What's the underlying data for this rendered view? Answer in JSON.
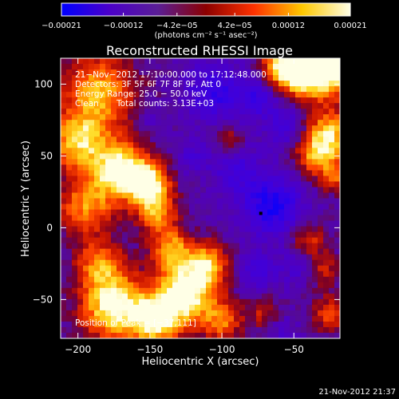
{
  "chart_data": {
    "type": "heatmap",
    "title": "Reconstructed RHESSI Image",
    "xlabel": "Heliocentric X (arcsec)",
    "ylabel": "Heliocentric Y (arcsec)",
    "xlim": [
      -212,
      -18
    ],
    "ylim": [
      -77,
      118
    ],
    "xticks": [
      -200,
      -150,
      -100,
      -50
    ],
    "yticks": [
      -50,
      0,
      50,
      100
    ],
    "xtick_labels": [
      "−200",
      "−150",
      "−100",
      "−50"
    ],
    "ytick_labels": [
      "−50",
      "0",
      "50",
      "100"
    ],
    "colorbar": {
      "min": -0.00021,
      "max": 0.00021,
      "ticks": [
        -0.00021,
        -0.00012,
        -4.2e-05,
        4.2e-05,
        0.00012,
        0.00021
      ],
      "tick_labels": [
        "−0.00021",
        "−0.00012",
        "−4.2e−05",
        "4.2e−05",
        "0.00012",
        "0.00021"
      ],
      "unit_label": "(photons cm⁻² s⁻¹ asec⁻²)",
      "colors": [
        "#0000ff",
        "#4b00c8",
        "#5a1e96",
        "#8c0000",
        "#ff3200",
        "#ffc800",
        "#ffffe6"
      ]
    },
    "annotations": {
      "time_range": "21−Nov−2012 17:10:00.000 to 17:12:48.000",
      "detectors": "Detectors: 3F 5F 6F 7F 8F 9F, Att 0",
      "energy_range": "Energy Range: 25.0 − 50.0 keV",
      "method": "Clean",
      "total_counts": "Total counts: 3.13E+03",
      "peak_label": "Position of Peak = [−37,111]"
    },
    "peak": {
      "x": -37,
      "y": 111
    },
    "min_marker": {
      "x": -73,
      "y": 10
    },
    "hot_regions": [
      {
        "x": -25,
        "y": 112,
        "w": 14,
        "v": 1.0
      },
      {
        "x": -45,
        "y": 108,
        "w": 12,
        "v": 0.85
      },
      {
        "x": -60,
        "y": 112,
        "w": 9,
        "v": 0.6
      },
      {
        "x": -25,
        "y": 65,
        "w": 12,
        "v": 0.75
      },
      {
        "x": -35,
        "y": 50,
        "w": 10,
        "v": 0.55
      },
      {
        "x": -20,
        "y": 35,
        "w": 8,
        "v": 0.45
      },
      {
        "x": -185,
        "y": 95,
        "w": 18,
        "v": 0.7
      },
      {
        "x": -200,
        "y": 60,
        "w": 14,
        "v": 0.75
      },
      {
        "x": -170,
        "y": 40,
        "w": 14,
        "v": 0.95
      },
      {
        "x": -150,
        "y": 30,
        "w": 10,
        "v": 0.8
      },
      {
        "x": -145,
        "y": 10,
        "w": 10,
        "v": 0.6
      },
      {
        "x": -195,
        "y": 15,
        "w": 14,
        "v": 0.6
      },
      {
        "x": -185,
        "y": -25,
        "w": 12,
        "v": 0.55
      },
      {
        "x": -175,
        "y": -55,
        "w": 16,
        "v": 0.95
      },
      {
        "x": -145,
        "y": -65,
        "w": 12,
        "v": 0.85
      },
      {
        "x": -125,
        "y": -45,
        "w": 14,
        "v": 1.0
      },
      {
        "x": -110,
        "y": -25,
        "w": 10,
        "v": 0.7
      },
      {
        "x": -135,
        "y": -15,
        "w": 10,
        "v": 0.65
      },
      {
        "x": -100,
        "y": -65,
        "w": 10,
        "v": 0.55
      },
      {
        "x": -40,
        "y": -10,
        "w": 9,
        "v": 0.45
      },
      {
        "x": -30,
        "y": -30,
        "w": 8,
        "v": 0.4
      },
      {
        "x": -25,
        "y": -60,
        "w": 9,
        "v": 0.45
      },
      {
        "x": -70,
        "y": -60,
        "w": 8,
        "v": 0.35
      },
      {
        "x": -95,
        "y": 60,
        "w": 7,
        "v": 0.35
      }
    ],
    "cold_regions": [
      {
        "x": -65,
        "y": 15,
        "w": 14,
        "v": 1.0
      },
      {
        "x": -105,
        "y": 95,
        "w": 14,
        "v": 0.75
      },
      {
        "x": -75,
        "y": 90,
        "w": 10,
        "v": 0.6
      },
      {
        "x": -90,
        "y": 40,
        "w": 12,
        "v": 0.55
      },
      {
        "x": -55,
        "y": 70,
        "w": 10,
        "v": 0.55
      },
      {
        "x": -45,
        "y": -25,
        "w": 10,
        "v": 0.5
      },
      {
        "x": -75,
        "y": -30,
        "w": 9,
        "v": 0.55
      },
      {
        "x": -120,
        "y": 50,
        "w": 8,
        "v": 0.4
      },
      {
        "x": -150,
        "y": 75,
        "w": 7,
        "v": 0.3
      },
      {
        "x": -60,
        "y": -70,
        "w": 8,
        "v": 0.35
      }
    ]
  },
  "footer": {
    "timestamp": "21-Nov-2012 21:37"
  }
}
